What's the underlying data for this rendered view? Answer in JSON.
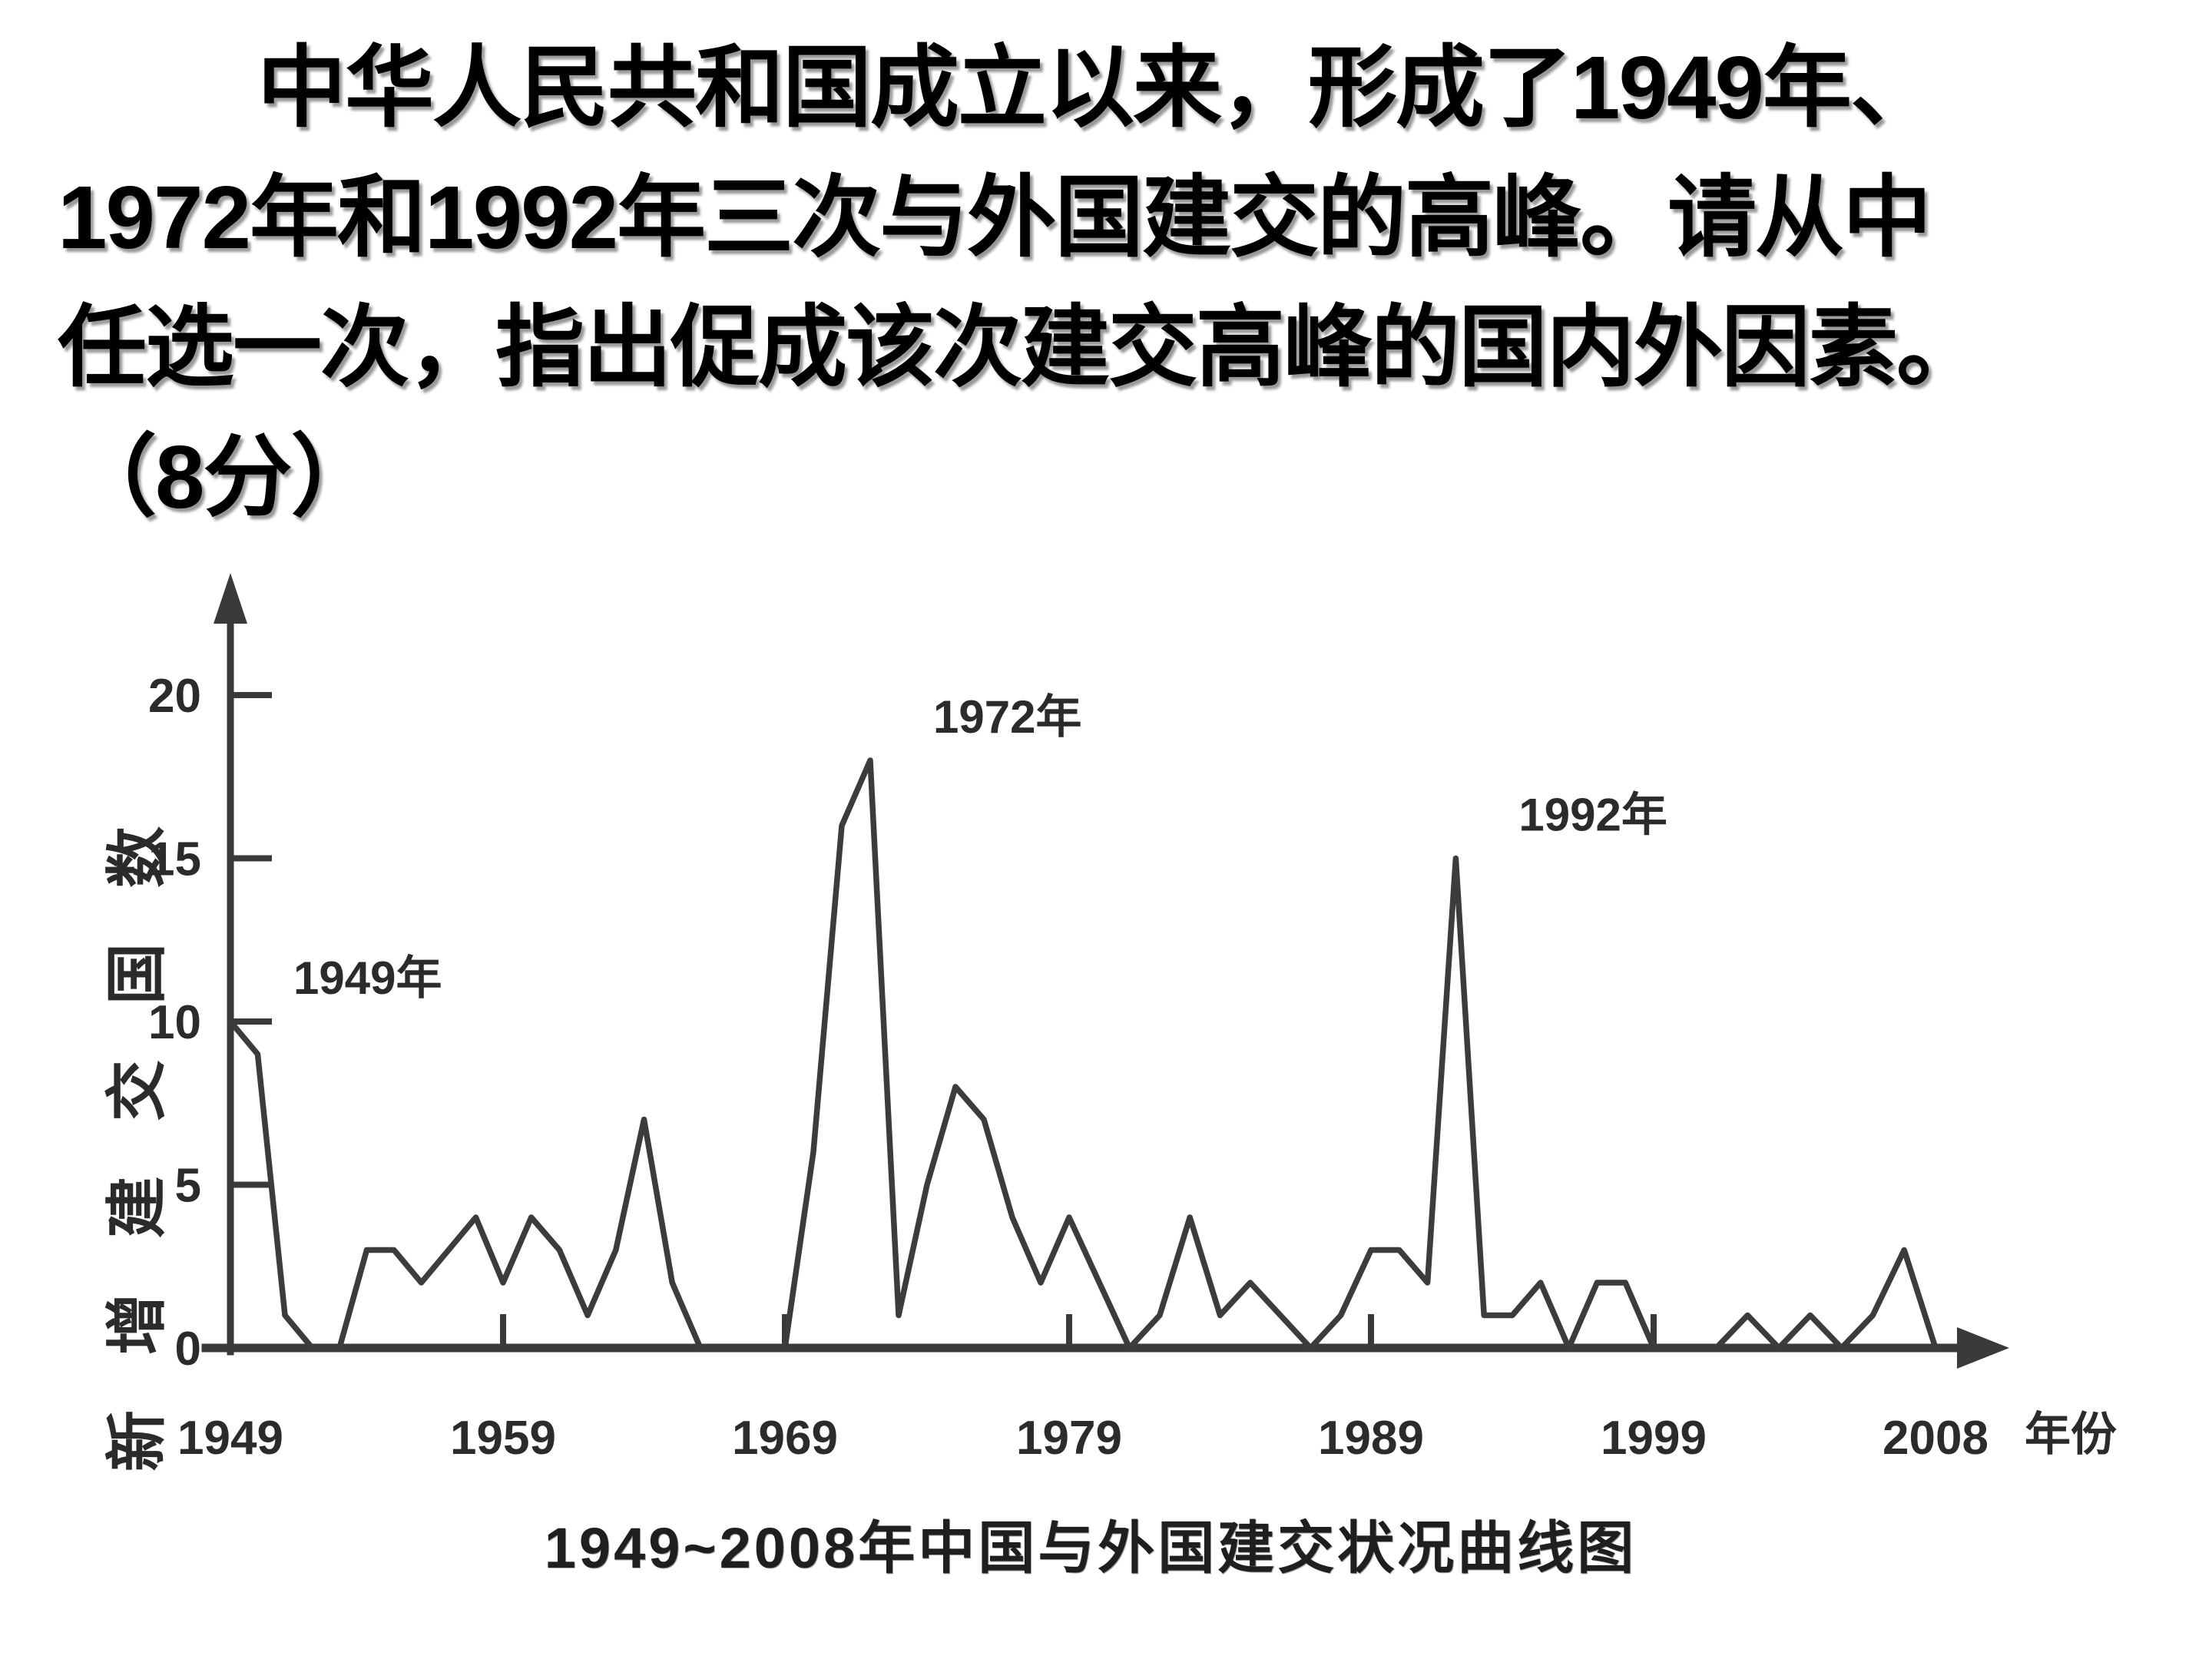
{
  "question": {
    "lines": [
      "中华人民共和国成立以来，形成了1949年、",
      "1972年和1992年三次与外国建交的高峰。请从中",
      "任选一次，指出促成该次建交高峰的国内外因素。",
      "（8分）"
    ]
  },
  "chart_data": {
    "type": "line",
    "title": "1949~2008年中国与外国建交状况曲线图",
    "xlabel": "年份",
    "ylabel": "新增建交国数",
    "x_tick_labels": [
      "1949",
      "1959",
      "1969",
      "1979",
      "1989",
      "1999",
      "2008"
    ],
    "y_ticks": [
      0,
      5,
      10,
      15,
      20
    ],
    "xlim": [
      1949,
      2008
    ],
    "ylim": [
      0,
      21
    ],
    "grid": false,
    "legend": "none",
    "annotations": [
      {
        "label": "1949年",
        "year": 1949,
        "value": 10
      },
      {
        "label": "1972年",
        "year": 1972,
        "value": 18
      },
      {
        "label": "1992年",
        "year": 1992,
        "value": 15
      }
    ],
    "series": [
      {
        "name": "新增建交国数",
        "points": [
          [
            1949,
            10
          ],
          [
            1950,
            9
          ],
          [
            1951,
            1
          ],
          [
            1952,
            0
          ],
          [
            1953,
            0
          ],
          [
            1954,
            3
          ],
          [
            1955,
            3
          ],
          [
            1956,
            2
          ],
          [
            1957,
            3
          ],
          [
            1958,
            4
          ],
          [
            1959,
            2
          ],
          [
            1960,
            4
          ],
          [
            1961,
            3
          ],
          [
            1962,
            1
          ],
          [
            1963,
            3
          ],
          [
            1964,
            7
          ],
          [
            1965,
            2
          ],
          [
            1966,
            0
          ],
          [
            1967,
            0
          ],
          [
            1968,
            0
          ],
          [
            1969,
            0
          ],
          [
            1970,
            6
          ],
          [
            1971,
            16
          ],
          [
            1972,
            18
          ],
          [
            1973,
            1
          ],
          [
            1974,
            5
          ],
          [
            1975,
            8
          ],
          [
            1976,
            7
          ],
          [
            1977,
            4
          ],
          [
            1978,
            2
          ],
          [
            1979,
            4
          ],
          [
            1980,
            2
          ],
          [
            1981,
            0
          ],
          [
            1982,
            1
          ],
          [
            1983,
            4
          ],
          [
            1984,
            1
          ],
          [
            1985,
            2
          ],
          [
            1986,
            1
          ],
          [
            1987,
            0
          ],
          [
            1988,
            1
          ],
          [
            1989,
            3
          ],
          [
            1990,
            3
          ],
          [
            1991,
            2
          ],
          [
            1992,
            15
          ],
          [
            1993,
            1
          ],
          [
            1994,
            1
          ],
          [
            1995,
            2
          ],
          [
            1996,
            0
          ],
          [
            1997,
            2
          ],
          [
            1998,
            2
          ],
          [
            1999,
            0
          ],
          [
            2000,
            0
          ],
          [
            2001,
            0
          ],
          [
            2002,
            1
          ],
          [
            2003,
            0
          ],
          [
            2004,
            1
          ],
          [
            2005,
            0
          ],
          [
            2006,
            1
          ],
          [
            2007,
            3
          ],
          [
            2008,
            0
          ]
        ]
      }
    ]
  },
  "colors": {
    "text": "#000000",
    "chart_ink": "#3a3a3a",
    "curve": "#3c3c3c",
    "label_ink": "#2b2b2b"
  }
}
